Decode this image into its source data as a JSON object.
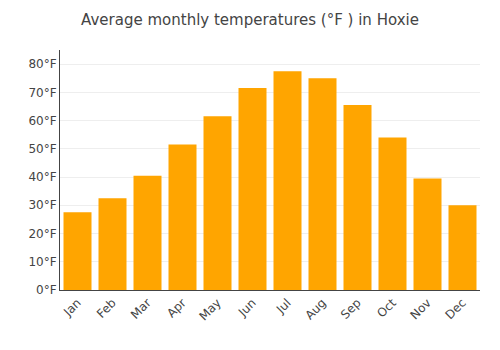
{
  "chart_data": {
    "type": "bar",
    "title": "Average monthly temperatures (°F ) in Hoxie",
    "categories": [
      "Jan",
      "Feb",
      "Mar",
      "Apr",
      "May",
      "Jun",
      "Jul",
      "Aug",
      "Sep",
      "Oct",
      "Nov",
      "Dec"
    ],
    "values": [
      27.5,
      32.5,
      40.5,
      51.5,
      61.5,
      71.5,
      77.5,
      75.0,
      65.5,
      54.0,
      39.5,
      30.0
    ],
    "color": "#FFA500",
    "ylim": [
      0,
      85
    ],
    "yticks": [
      {
        "value": 0,
        "label": "0°F"
      },
      {
        "value": 10,
        "label": "10°F"
      },
      {
        "value": 20,
        "label": "20°F"
      },
      {
        "value": 30,
        "label": "30°F"
      },
      {
        "value": 40,
        "label": "40°F"
      },
      {
        "value": 50,
        "label": "50°F"
      },
      {
        "value": 60,
        "label": "60°F"
      },
      {
        "value": 70,
        "label": "70°F"
      },
      {
        "value": 80,
        "label": "80°F"
      }
    ],
    "grid": true
  }
}
